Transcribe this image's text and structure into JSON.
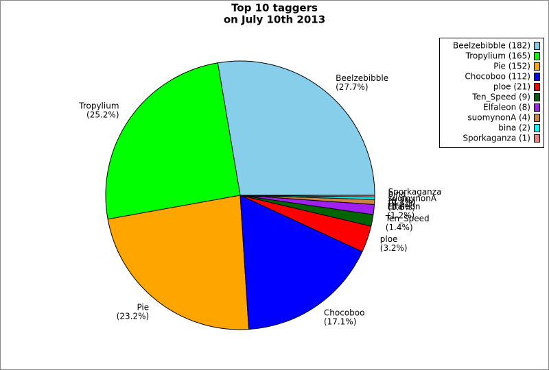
{
  "chart_data": {
    "type": "pie",
    "title": "Top 10 taggers",
    "subtitle": "on July 10th 2013",
    "categories": [
      "Beelzebibble",
      "Tropylium",
      "Pie",
      "Chocoboo",
      "ploe",
      "Ten_Speed",
      "Elfaleon",
      "suomynonA",
      "bina",
      "Sporkaganza"
    ],
    "values": [
      27.7,
      25.2,
      23.2,
      17.1,
      3.2,
      1.4,
      1.2,
      0.6,
      0.3,
      0.2
    ],
    "value_labels": [
      "(27.7%)",
      "(25.2%)",
      "(23.2%)",
      "(17.1%)",
      "(3.2%)",
      "(1.4%)",
      "(1.2%)",
      "(0.6%)",
      "(0.3%)",
      "(0.2%)"
    ],
    "legend_labels": [
      "Beelzebibble (182)",
      "Tropylium (165)",
      "Pie (152)",
      "Chocoboo (112)",
      "ploe (21)",
      "Ten_Speed (9)",
      "Elfaleon (8)",
      "suomynonA (4)",
      "bina (2)",
      "Sporkaganza (1)"
    ],
    "colors": [
      "#87ceeb",
      "#00ff00",
      "#ffa500",
      "#0000ff",
      "#ff0000",
      "#006400",
      "#a020f0",
      "#cd853f",
      "#00ffff",
      "#f08080"
    ],
    "legend": "upper right"
  }
}
